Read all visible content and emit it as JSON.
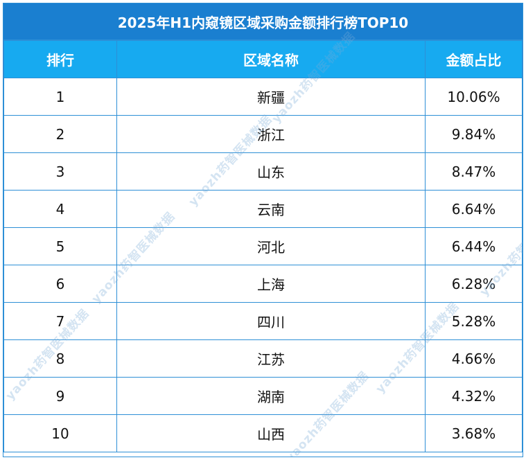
{
  "title": "2025年H1内窥镜区域采购金额排行榜TOP10",
  "headers": {
    "rank": "排行",
    "region": "区域名称",
    "share": "金额占比"
  },
  "rows": [
    {
      "rank": "1",
      "region": "新疆",
      "share": "10.06%"
    },
    {
      "rank": "2",
      "region": "浙江",
      "share": "9.84%"
    },
    {
      "rank": "3",
      "region": "山东",
      "share": "8.47%"
    },
    {
      "rank": "4",
      "region": "云南",
      "share": "6.64%"
    },
    {
      "rank": "5",
      "region": "河北",
      "share": "6.44%"
    },
    {
      "rank": "6",
      "region": "上海",
      "share": "6.28%"
    },
    {
      "rank": "7",
      "region": "四川",
      "share": "5.28%"
    },
    {
      "rank": "8",
      "region": "江苏",
      "share": "4.66%"
    },
    {
      "rank": "9",
      "region": "湖南",
      "share": "4.32%"
    },
    {
      "rank": "10",
      "region": "山西",
      "share": "3.68%"
    }
  ],
  "watermark": "yaozh药智医械数据",
  "colors": {
    "title_bg": "#1a7fd0",
    "header_bg": "#17aaf0",
    "border": "#2d8fd6"
  }
}
